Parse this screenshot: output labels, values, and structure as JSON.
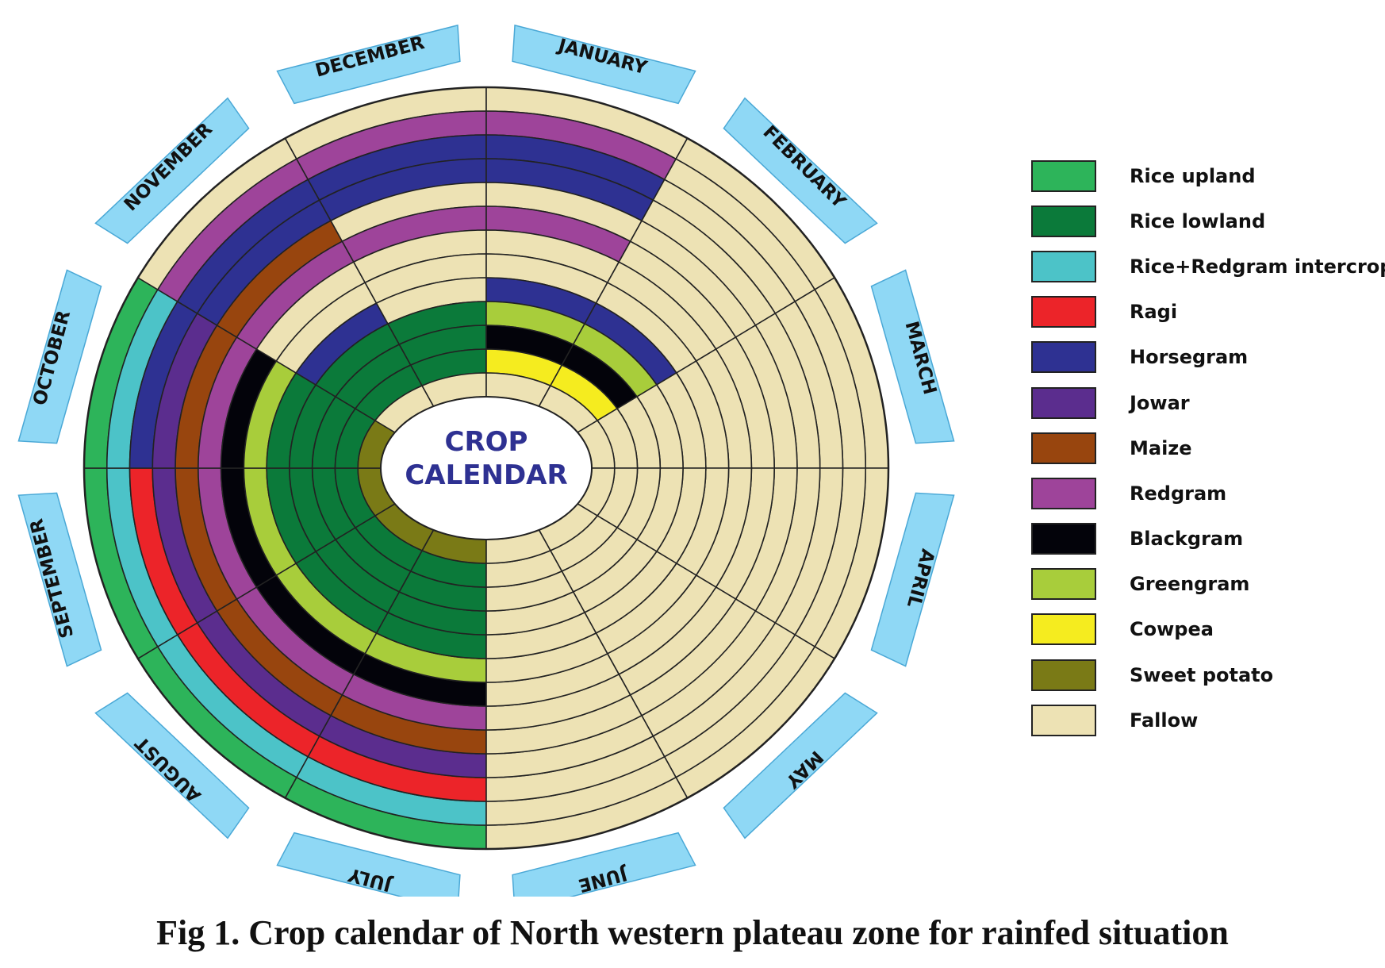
{
  "center_title": [
    "CROP",
    "CALENDAR"
  ],
  "months": [
    "JANUARY",
    "FEBRUARY",
    "MARCH",
    "APRIL",
    "MAY",
    "JUNE",
    "JULY",
    "AUGUST",
    "SEPTEMBER",
    "OCTOBER",
    "NOVEMBER",
    "DECEMBER"
  ],
  "legend": [
    {
      "key": "rice_upland",
      "label": "Rice upland",
      "color": "#2db45a"
    },
    {
      "key": "rice_lowland",
      "label": "Rice lowland",
      "color": "#0b7a3a"
    },
    {
      "key": "rice_redgram",
      "label": "Rice+Redgram intercrop",
      "color": "#4cc3c8"
    },
    {
      "key": "ragi",
      "label": "Ragi",
      "color": "#ec2429"
    },
    {
      "key": "horsegram",
      "label": "Horsegram",
      "color": "#2e3192"
    },
    {
      "key": "jowar",
      "label": "Jowar",
      "color": "#5b2d8e"
    },
    {
      "key": "maize",
      "label": "Maize",
      "color": "#98450e"
    },
    {
      "key": "redgram",
      "label": "Redgram",
      "color": "#9e449a"
    },
    {
      "key": "blackgram",
      "label": "Blackgram",
      "color": "#03030a"
    },
    {
      "key": "greengram",
      "label": "Greengram",
      "color": "#a8cd3b"
    },
    {
      "key": "cowpea",
      "label": "Cowpea",
      "color": "#f5ec1f"
    },
    {
      "key": "sweet_potato",
      "label": "Sweet potato",
      "color": "#7a7a16"
    },
    {
      "key": "fallow",
      "label": "Fallow",
      "color": "#ede2b4"
    }
  ],
  "chart_data": {
    "type": "radial-calendar",
    "month_order": [
      "JUNE",
      "JULY",
      "AUGUST",
      "SEPTEMBER",
      "OCTOBER",
      "NOVEMBER",
      "DECEMBER",
      "JANUARY",
      "FEBRUARY",
      "MARCH",
      "APRIL",
      "MAY"
    ],
    "rings_outer_to_inner": [
      [
        "rice_upland",
        "rice_upland",
        "rice_upland",
        "rice_upland",
        "fallow",
        "fallow",
        "fallow",
        "fallow",
        "fallow",
        "fallow",
        "fallow",
        "fallow"
      ],
      [
        "rice_redgram",
        "rice_redgram",
        "rice_redgram",
        "rice_redgram",
        "redgram",
        "redgram",
        "redgram",
        "fallow",
        "fallow",
        "fallow",
        "fallow",
        "fallow"
      ],
      [
        "ragi",
        "ragi",
        "ragi",
        "horsegram",
        "horsegram",
        "horsegram",
        "horsegram",
        "fallow",
        "fallow",
        "fallow",
        "fallow",
        "fallow"
      ],
      [
        "jowar",
        "jowar",
        "jowar",
        "jowar",
        "horsegram",
        "horsegram",
        "horsegram",
        "fallow",
        "fallow",
        "fallow",
        "fallow",
        "fallow"
      ],
      [
        "maize",
        "maize",
        "maize",
        "maize",
        "maize",
        "fallow",
        "fallow",
        "fallow",
        "fallow",
        "fallow",
        "fallow",
        "fallow"
      ],
      [
        "redgram",
        "redgram",
        "redgram",
        "redgram",
        "redgram",
        "redgram",
        "redgram",
        "fallow",
        "fallow",
        "fallow",
        "fallow",
        "fallow"
      ],
      [
        "blackgram",
        "blackgram",
        "blackgram",
        "blackgram",
        "fallow",
        "fallow",
        "fallow",
        "fallow",
        "fallow",
        "fallow",
        "fallow",
        "fallow"
      ],
      [
        "greengram",
        "greengram",
        "greengram",
        "greengram",
        "fallow",
        "fallow",
        "fallow",
        "fallow",
        "fallow",
        "fallow",
        "fallow",
        "fallow"
      ],
      [
        "rice_lowland",
        "rice_lowland",
        "rice_lowland",
        "rice_lowland",
        "horsegram",
        "fallow",
        "horsegram",
        "horsegram",
        "fallow",
        "fallow",
        "fallow",
        "fallow"
      ],
      [
        "rice_lowland",
        "rice_lowland",
        "rice_lowland",
        "rice_lowland",
        "rice_lowland",
        "rice_lowland",
        "greengram",
        "greengram",
        "fallow",
        "fallow",
        "fallow",
        "fallow"
      ],
      [
        "rice_lowland",
        "rice_lowland",
        "rice_lowland",
        "rice_lowland",
        "rice_lowland",
        "rice_lowland",
        "blackgram",
        "blackgram",
        "fallow",
        "fallow",
        "fallow",
        "fallow"
      ],
      [
        "rice_lowland",
        "rice_lowland",
        "rice_lowland",
        "rice_lowland",
        "rice_lowland",
        "rice_lowland",
        "cowpea",
        "cowpea",
        "fallow",
        "fallow",
        "fallow",
        "fallow"
      ],
      [
        "sweet_potato",
        "sweet_potato",
        "sweet_potato",
        "sweet_potato",
        "fallow",
        "fallow",
        "fallow",
        "fallow",
        "fallow",
        "fallow",
        "fallow",
        "fallow"
      ]
    ]
  },
  "caption": "Fig 1. Crop calendar of North western plateau zone for rainfed situation"
}
